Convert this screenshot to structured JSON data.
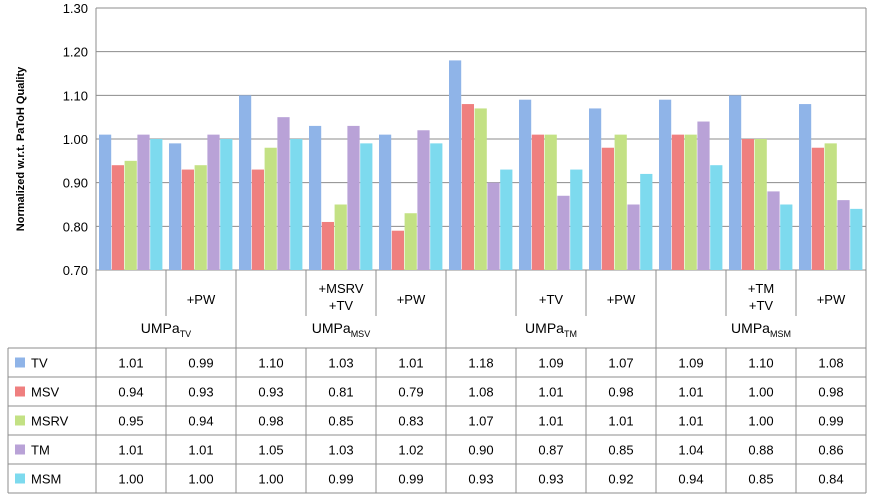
{
  "chart_data": {
    "type": "bar",
    "ylabel": "Normalized w.r.t. PaToH Quality",
    "ylim": [
      0.7,
      1.3
    ],
    "yticks": [
      "0.70",
      "0.80",
      "0.90",
      "1.00",
      "1.10",
      "1.20",
      "1.30"
    ],
    "grid": true,
    "groups": [
      {
        "base": "UMPa",
        "sub": "TV",
        "span": 2
      },
      {
        "base": "UMPa",
        "sub": "MSV",
        "span": 3
      },
      {
        "base": "UMPa",
        "sub": "TM",
        "span": 3
      },
      {
        "base": "UMPa",
        "sub": "MSM",
        "span": 3
      }
    ],
    "categories": [
      [],
      [
        "+PW"
      ],
      [],
      [
        "+MSRV",
        "+TV"
      ],
      [
        "+PW"
      ],
      [],
      [
        "+TV"
      ],
      [
        "+PW"
      ],
      [],
      [
        "+TM",
        "+TV"
      ],
      [
        "+PW"
      ]
    ],
    "series": [
      {
        "name": "TV",
        "color": "#8fb4e8",
        "values": [
          1.01,
          0.99,
          1.1,
          1.03,
          1.01,
          1.18,
          1.09,
          1.07,
          1.09,
          1.1,
          1.08
        ]
      },
      {
        "name": "MSV",
        "color": "#ef7f7f",
        "values": [
          0.94,
          0.93,
          0.93,
          0.81,
          0.79,
          1.08,
          1.01,
          0.98,
          1.01,
          1.0,
          0.98
        ]
      },
      {
        "name": "MSRV",
        "color": "#c3e184",
        "values": [
          0.95,
          0.94,
          0.98,
          0.85,
          0.83,
          1.07,
          1.01,
          1.01,
          1.01,
          1.0,
          0.99
        ]
      },
      {
        "name": "TM",
        "color": "#b9a2d7",
        "values": [
          1.01,
          1.01,
          1.05,
          1.03,
          1.02,
          0.9,
          0.87,
          0.85,
          1.04,
          0.88,
          0.86
        ]
      },
      {
        "name": "MSM",
        "color": "#7ddaee",
        "values": [
          1.0,
          1.0,
          1.0,
          0.99,
          0.99,
          0.93,
          0.93,
          0.92,
          0.94,
          0.85,
          0.84
        ]
      }
    ]
  }
}
